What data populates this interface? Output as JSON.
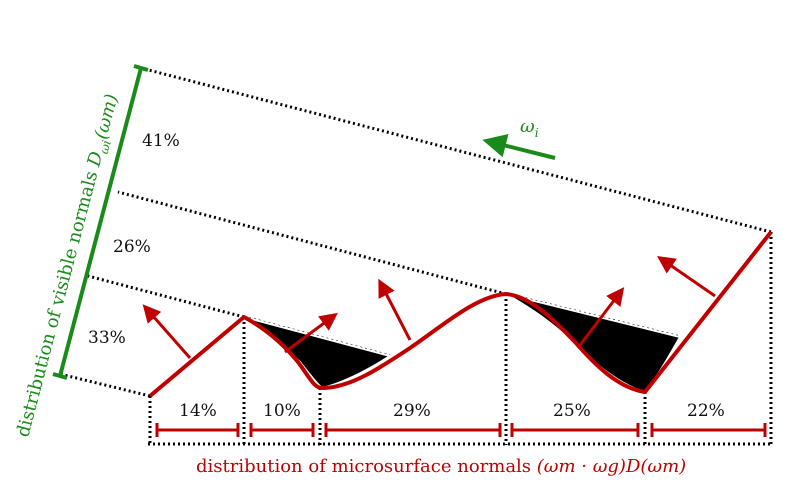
{
  "colors": {
    "surface": "#c00000",
    "visible": "#1a8a1a",
    "shadow": "#000000",
    "dots": "#000000"
  },
  "visible_axis": {
    "label_text": "distribution of visible normals ",
    "label_math": "D",
    "label_sub": "ωi",
    "label_arg": "(ωm)",
    "percentages": [
      "41%",
      "26%",
      "33%"
    ]
  },
  "incident_direction": {
    "label": "ω",
    "label_sub": "i"
  },
  "microsurface_axis": {
    "label_text": "distribution of microsurface normals ",
    "label_math": "(ωm · ωg)D(ωm)",
    "percentages": [
      "14%",
      "10%",
      "29%",
      "25%",
      "22%"
    ]
  }
}
